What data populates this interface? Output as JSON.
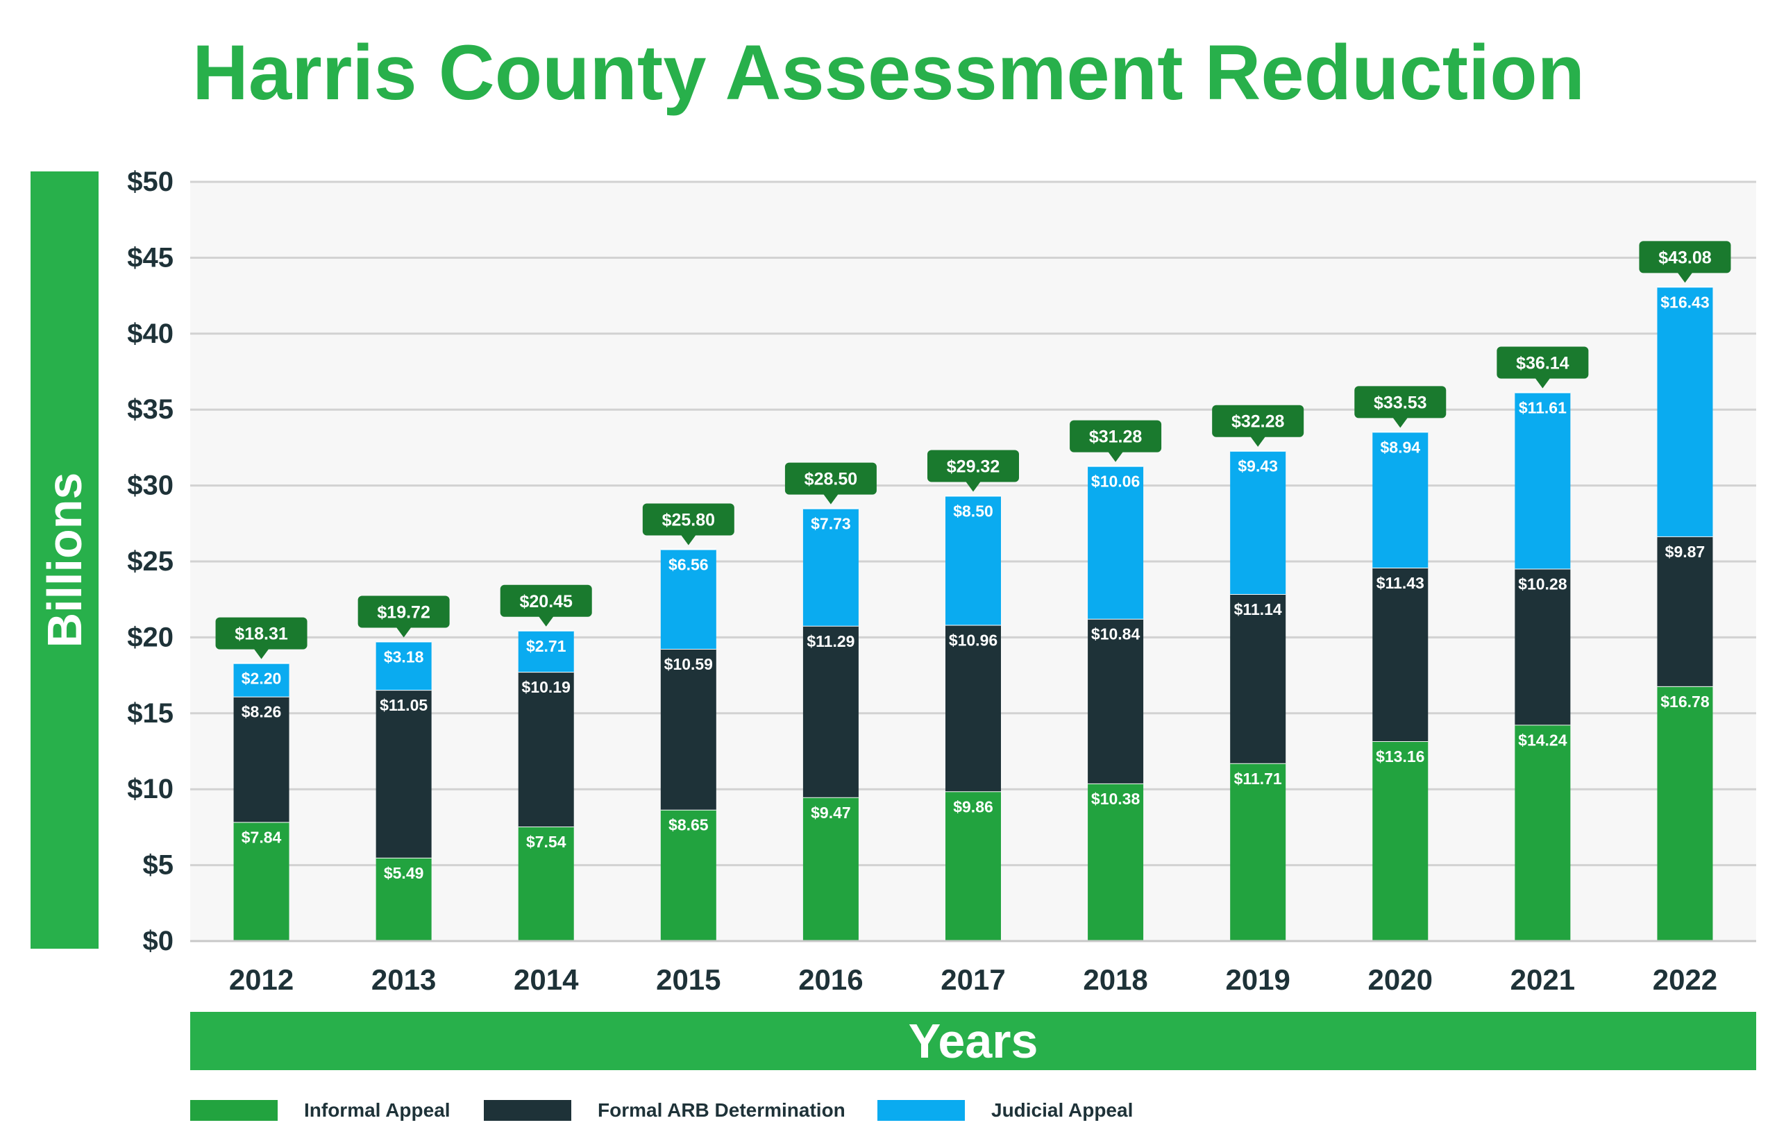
{
  "chart_data": {
    "type": "bar",
    "stacked": true,
    "title": "Harris County Assessment Reduction",
    "xlabel": "Years",
    "ylabel": "Billions",
    "ylim": [
      0,
      50
    ],
    "yticks": [
      0,
      5,
      10,
      15,
      20,
      25,
      30,
      35,
      40,
      45,
      50
    ],
    "ytick_labels": [
      "$0",
      "$5",
      "$10",
      "$15",
      "$20",
      "$25",
      "$30",
      "$35",
      "$40",
      "$45",
      "$50"
    ],
    "categories": [
      "2012",
      "2013",
      "2014",
      "2015",
      "2016",
      "2017",
      "2018",
      "2019",
      "2020",
      "2021",
      "2022"
    ],
    "series": [
      {
        "name": "Informal Appeal",
        "color": "#22a33f",
        "values": [
          7.84,
          5.49,
          7.54,
          8.65,
          9.47,
          9.86,
          10.38,
          11.71,
          13.16,
          14.24,
          16.78
        ],
        "labels": [
          "$7.84",
          "$5.49",
          "$7.54",
          "$8.65",
          "$9.47",
          "$9.86",
          "$10.38",
          "$11.71",
          "$13.16",
          "$14.24",
          "$16.78"
        ]
      },
      {
        "name": "Formal ARB Determination",
        "color": "#1e3238",
        "values": [
          8.26,
          11.05,
          10.19,
          10.59,
          11.29,
          10.96,
          10.84,
          11.14,
          11.43,
          10.28,
          9.87
        ],
        "labels": [
          "$8.26",
          "$11.05",
          "$10.19",
          "$10.59",
          "$11.29",
          "$10.96",
          "$10.84",
          "$11.14",
          "$11.43",
          "$10.28",
          "$9.87"
        ]
      },
      {
        "name": "Judicial Appeal",
        "color": "#0aabf0",
        "values": [
          2.2,
          3.18,
          2.71,
          6.56,
          7.73,
          8.5,
          10.06,
          9.43,
          8.94,
          11.61,
          16.43
        ],
        "labels": [
          "$2.20",
          "$3.18",
          "$2.71",
          "$6.56",
          "$7.73",
          "$8.50",
          "$10.06",
          "$9.43",
          "$8.94",
          "$11.61",
          "$16.43"
        ]
      }
    ],
    "totals": [
      18.31,
      19.72,
      20.45,
      25.8,
      28.5,
      29.32,
      31.28,
      32.28,
      33.53,
      36.14,
      43.08
    ],
    "total_labels": [
      "$18.31",
      "$19.72",
      "$20.45",
      "$25.80",
      "$28.50",
      "$29.32",
      "$31.28",
      "$32.28",
      "$33.53",
      "$36.14",
      "$43.08"
    ],
    "total_callout_color": "#1a7a2e",
    "grid": true,
    "legend": "bottom-left"
  }
}
